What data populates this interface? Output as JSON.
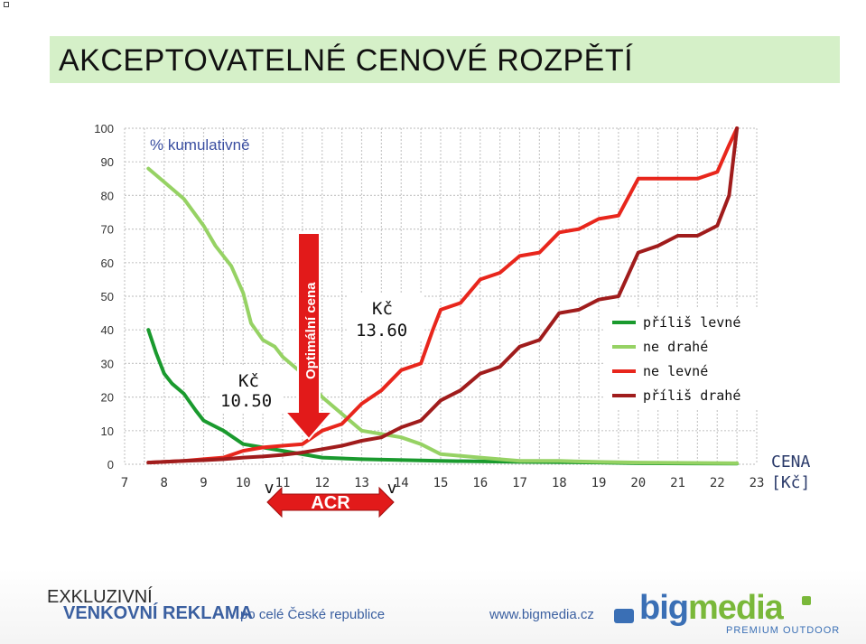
{
  "slide": {
    "title": "AKCEPTOVATELNÉ CENOVÉ ROZPĚTÍ"
  },
  "chart_data": {
    "type": "line",
    "ylabel": "% kumulativně",
    "xlabel": "CENA [Kč]",
    "xlim": [
      7,
      23
    ],
    "ylim": [
      0,
      100
    ],
    "x_ticks": [
      7,
      8,
      9,
      10,
      11,
      12,
      13,
      14,
      15,
      16,
      17,
      18,
      19,
      20,
      21,
      22,
      23
    ],
    "y_ticks": [
      0,
      10,
      20,
      30,
      40,
      50,
      60,
      70,
      80,
      90,
      100
    ],
    "grid": true,
    "legend_position": "right",
    "colors": {
      "prilis_levne": "#1a9a2e",
      "ne_drahe": "#96d264",
      "ne_levne": "#e8261c",
      "prilis_drahe": "#a01c1c",
      "optimal_arrow": "#e21a1a",
      "acr_arrow": "#e21a1a"
    },
    "series": [
      {
        "name": "příliš levné",
        "points": [
          [
            7.6,
            40
          ],
          [
            7.8,
            33
          ],
          [
            8,
            27
          ],
          [
            8.2,
            24
          ],
          [
            8.5,
            21
          ],
          [
            8.8,
            16
          ],
          [
            9,
            13
          ],
          [
            9.5,
            10
          ],
          [
            10,
            6
          ],
          [
            10.5,
            5
          ],
          [
            11,
            4
          ],
          [
            12,
            2
          ],
          [
            13,
            1.5
          ],
          [
            15,
            1
          ],
          [
            17,
            0.7
          ],
          [
            19,
            0.5
          ],
          [
            20,
            0.3
          ],
          [
            22.5,
            0.2
          ]
        ]
      },
      {
        "name": "ne drahé",
        "points": [
          [
            7.6,
            88
          ],
          [
            8,
            84
          ],
          [
            8.5,
            79
          ],
          [
            9,
            71
          ],
          [
            9.3,
            65
          ],
          [
            9.7,
            59
          ],
          [
            10,
            51
          ],
          [
            10.2,
            42
          ],
          [
            10.5,
            37
          ],
          [
            10.8,
            35
          ],
          [
            11,
            32
          ],
          [
            11.5,
            27
          ],
          [
            12,
            20
          ],
          [
            12.5,
            15
          ],
          [
            13,
            10
          ],
          [
            13.5,
            9
          ],
          [
            14,
            8
          ],
          [
            14.5,
            6
          ],
          [
            15,
            3
          ],
          [
            16,
            2
          ],
          [
            17,
            1
          ],
          [
            18,
            1
          ],
          [
            19,
            0.7
          ],
          [
            20,
            0.5
          ],
          [
            22.5,
            0.3
          ]
        ]
      },
      {
        "name": "ne levné",
        "points": [
          [
            7.6,
            0.5
          ],
          [
            8.5,
            1
          ],
          [
            9,
            1.5
          ],
          [
            9.5,
            2
          ],
          [
            10,
            4
          ],
          [
            10.5,
            5
          ],
          [
            11,
            5.5
          ],
          [
            11.5,
            6
          ],
          [
            12,
            10
          ],
          [
            12.5,
            12
          ],
          [
            13,
            18
          ],
          [
            13.5,
            22
          ],
          [
            14,
            28
          ],
          [
            14.5,
            30
          ],
          [
            14.8,
            40
          ],
          [
            15,
            46
          ],
          [
            15.5,
            48
          ],
          [
            16,
            55
          ],
          [
            16.5,
            57
          ],
          [
            17,
            62
          ],
          [
            17.5,
            63
          ],
          [
            18,
            69
          ],
          [
            18.5,
            70
          ],
          [
            19,
            73
          ],
          [
            19.5,
            74
          ],
          [
            20,
            85
          ],
          [
            20.5,
            85
          ],
          [
            21,
            85
          ],
          [
            21.5,
            85
          ],
          [
            22,
            87
          ],
          [
            22.3,
            95
          ],
          [
            22.5,
            100
          ]
        ]
      },
      {
        "name": "příliš drahé",
        "points": [
          [
            7.6,
            0.5
          ],
          [
            8.5,
            1
          ],
          [
            9,
            1.2
          ],
          [
            9.5,
            1.5
          ],
          [
            10,
            2
          ],
          [
            10.5,
            2.3
          ],
          [
            11,
            2.8
          ],
          [
            11.5,
            3.5
          ],
          [
            12,
            4.5
          ],
          [
            12.5,
            5.5
          ],
          [
            13,
            7
          ],
          [
            13.5,
            8
          ],
          [
            14,
            11
          ],
          [
            14.5,
            13
          ],
          [
            15,
            19
          ],
          [
            15.5,
            22
          ],
          [
            16,
            27
          ],
          [
            16.5,
            29
          ],
          [
            17,
            35
          ],
          [
            17.5,
            37
          ],
          [
            18,
            45
          ],
          [
            18.5,
            46
          ],
          [
            19,
            49
          ],
          [
            19.5,
            50
          ],
          [
            20,
            63
          ],
          [
            20.5,
            65
          ],
          [
            21,
            68
          ],
          [
            21.5,
            68
          ],
          [
            22,
            71
          ],
          [
            22.3,
            80
          ],
          [
            22.5,
            100
          ]
        ]
      }
    ],
    "annotations": {
      "optimal_label": "Optimální cena",
      "price_low_currency": "Kč",
      "price_low_value": "10.50",
      "price_high_currency": "Kč",
      "price_high_value": "13.60",
      "acr_label": "ACR",
      "check_left": "v",
      "check_right": "v"
    },
    "axis_title_currency": "CENA",
    "axis_title_unit": "[Kč]"
  },
  "footer": {
    "line1": "EXKLUZIVNÍ",
    "line2": "VENKOVNÍ REKLAMA",
    "line2_suffix": "po celé České republice",
    "website": "www.bigmedia.cz",
    "logo_prefix": "big",
    "logo_suffix": "media",
    "logo_sub": "PREMIUM OUTDOOR"
  }
}
